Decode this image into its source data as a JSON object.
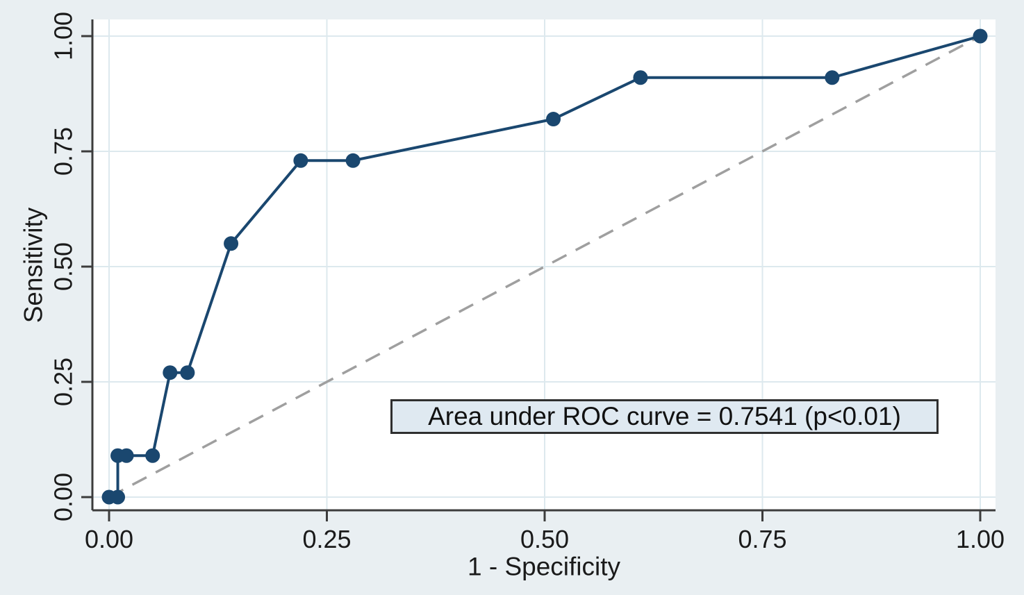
{
  "chart_data": {
    "type": "line",
    "title": "",
    "xlabel": "1 - Specificity",
    "ylabel": "Sensitivity",
    "xlim": [
      0,
      1
    ],
    "ylim": [
      0,
      1
    ],
    "grid": true,
    "legend": "none",
    "xticks": [
      {
        "value": 0.0,
        "label": "0.00"
      },
      {
        "value": 0.25,
        "label": "0.25"
      },
      {
        "value": 0.5,
        "label": "0.50"
      },
      {
        "value": 0.75,
        "label": "0.75"
      },
      {
        "value": 1.0,
        "label": "1.00"
      }
    ],
    "yticks": [
      {
        "value": 0.0,
        "label": "0.00"
      },
      {
        "value": 0.25,
        "label": "0.25"
      },
      {
        "value": 0.5,
        "label": "0.50"
      },
      {
        "value": 0.75,
        "label": "0.75"
      },
      {
        "value": 1.0,
        "label": "1.00"
      }
    ],
    "series": [
      {
        "name": "roc-curve",
        "style": "solid-with-markers",
        "color": "#1a476f",
        "line_width": 4,
        "marker_radius": 10.5,
        "points": [
          [
            0.0,
            0.0
          ],
          [
            0.01,
            0.0
          ],
          [
            0.01,
            0.09
          ],
          [
            0.02,
            0.09
          ],
          [
            0.05,
            0.09
          ],
          [
            0.07,
            0.27
          ],
          [
            0.09,
            0.27
          ],
          [
            0.14,
            0.55
          ],
          [
            0.22,
            0.73
          ],
          [
            0.28,
            0.73
          ],
          [
            0.51,
            0.82
          ],
          [
            0.61,
            0.91
          ],
          [
            0.83,
            0.91
          ],
          [
            1.0,
            1.0
          ]
        ]
      },
      {
        "name": "reference-diagonal",
        "style": "dashed",
        "color": "#9f9f9f",
        "line_width": 3.5,
        "dash": "23 15",
        "points": [
          [
            0.0,
            0.0
          ],
          [
            1.0,
            1.0
          ]
        ]
      }
    ],
    "annotation": "Area under ROC curve = 0.7541 (p<0.01)"
  },
  "colors": {
    "page_background": "#e9eff2",
    "plot_background": "#ffffff",
    "gridline": "#dde9ee",
    "axis": "#3c3c3c",
    "text": "#1a1a1a",
    "curve": "#1a476f",
    "reference_line": "#9f9f9f",
    "annotation_fill": "#dfe9f1",
    "annotation_border": "#2f2f2f"
  }
}
